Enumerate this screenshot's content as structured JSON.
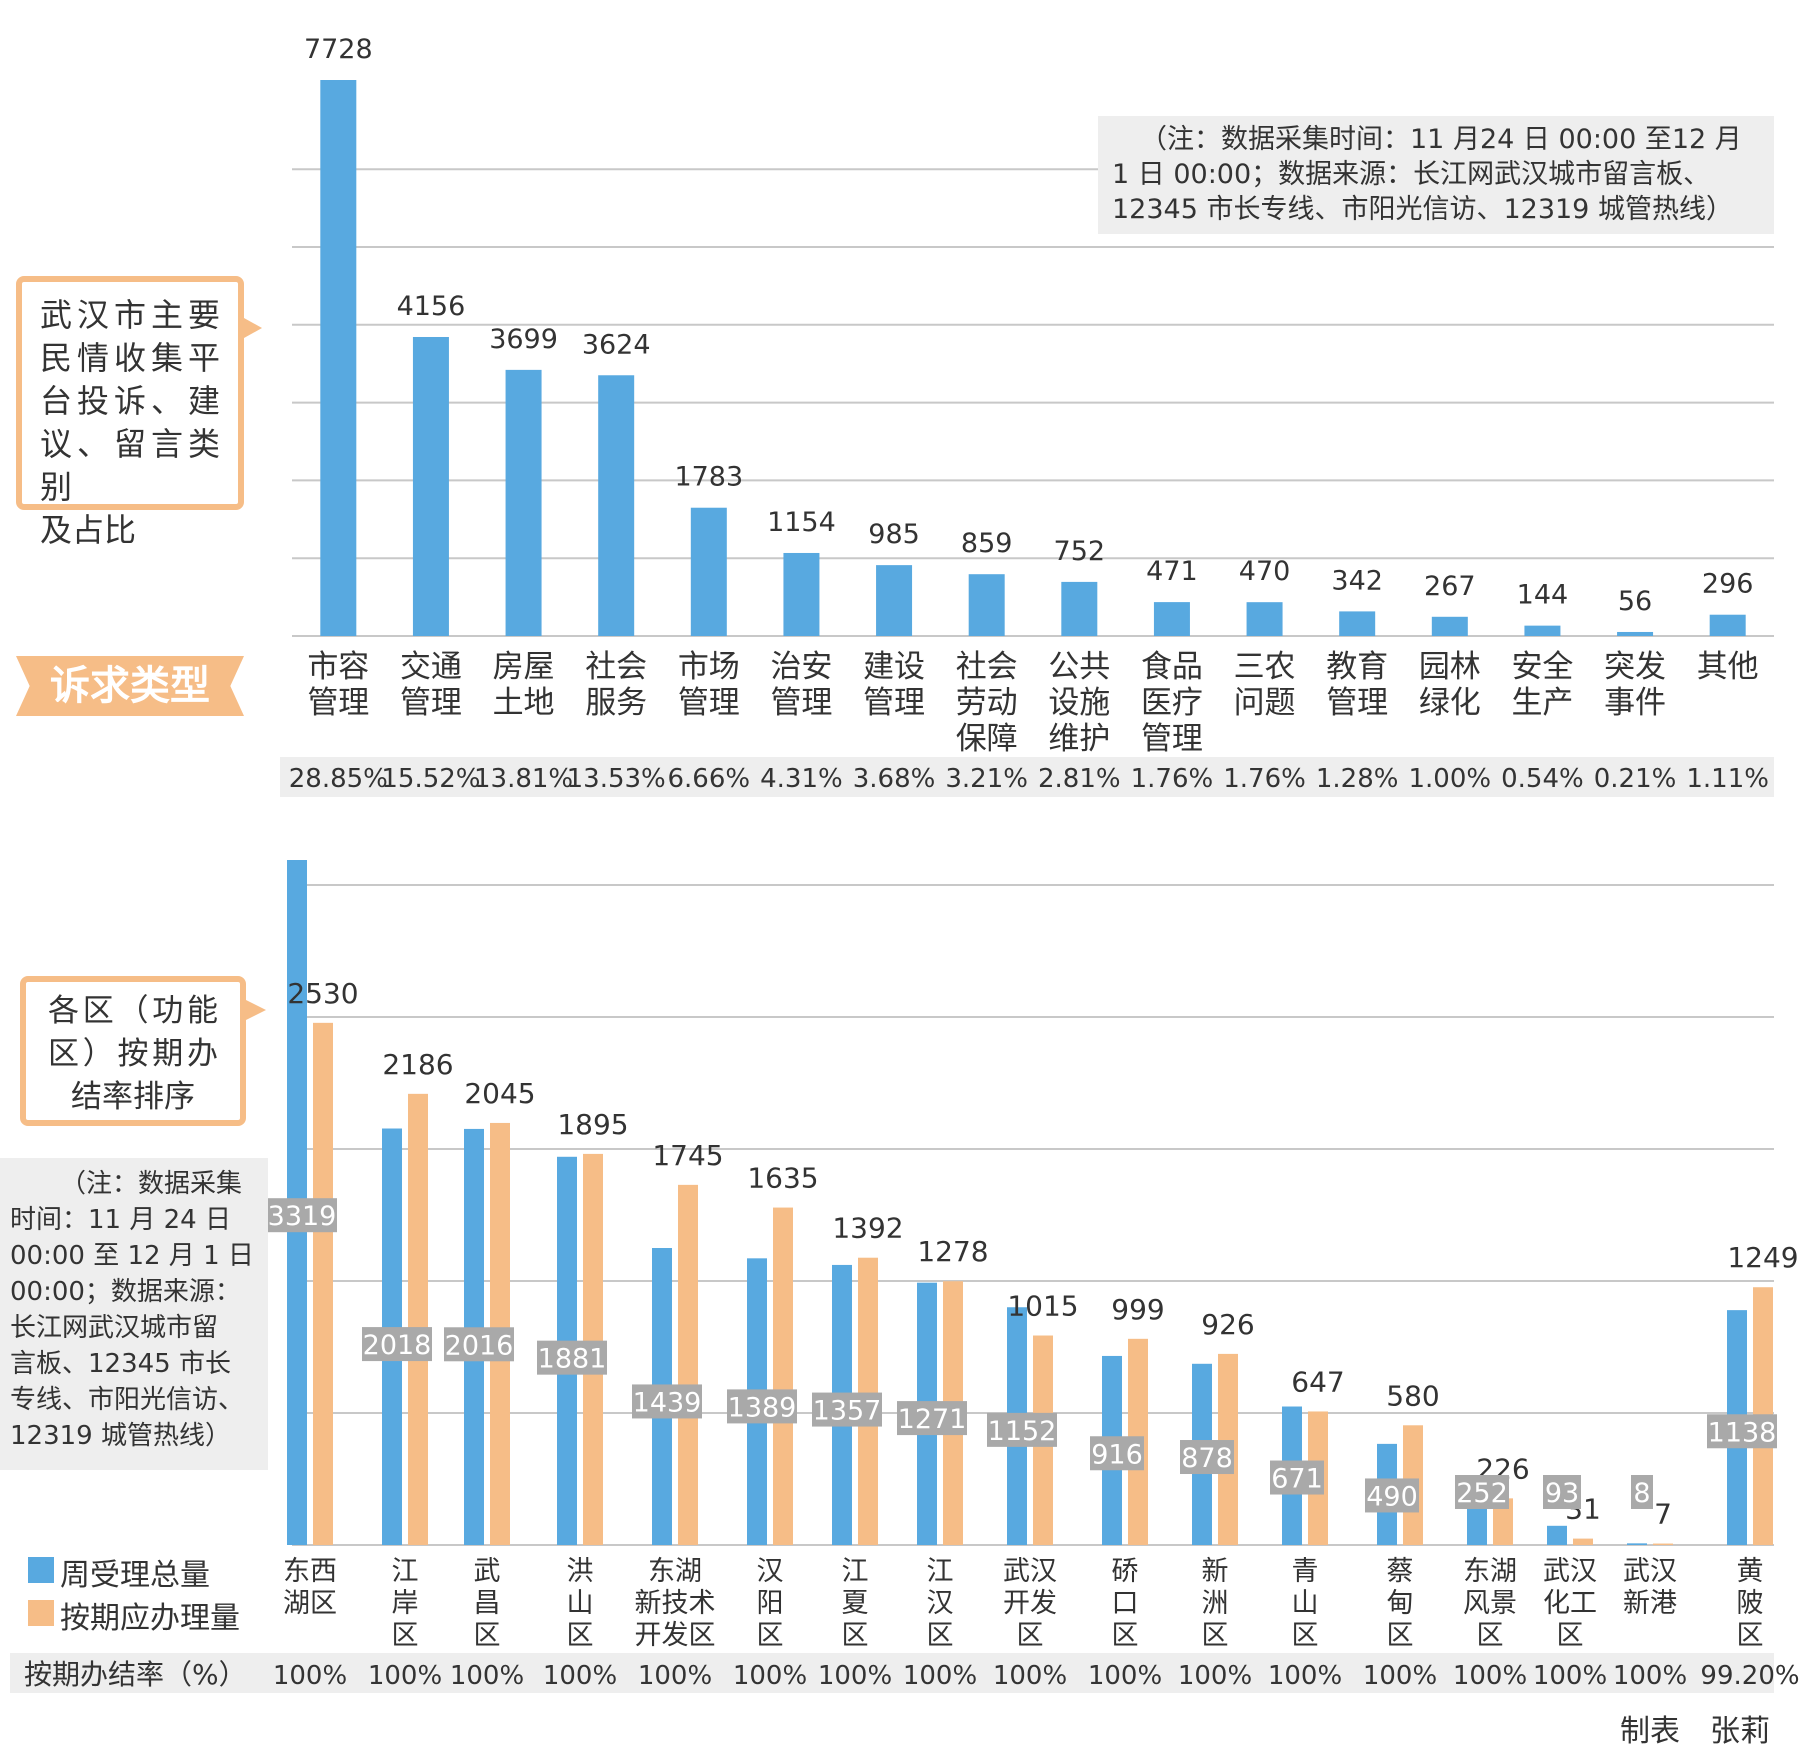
{
  "chart_data": [
    {
      "type": "bar",
      "title_lines": [
        "武汉市主要",
        "民情收集平",
        "台投诉、建",
        "议、留言类别",
        "及占比"
      ],
      "axis_banner": "诉求类型",
      "note_lines": [
        "（注：数据采集时间：11 月24 日 00:00 至12 月",
        "1 日 00:00；数据来源：长江网武汉城市留言板、",
        "12345 市长专线、市阳光信访、12319 城管热线）"
      ],
      "categories": [
        [
          "市容",
          "管理"
        ],
        [
          "交通",
          "管理"
        ],
        [
          "房屋",
          "土地"
        ],
        [
          "社会",
          "服务"
        ],
        [
          "市场",
          "管理"
        ],
        [
          "治安",
          "管理"
        ],
        [
          "建设",
          "管理"
        ],
        [
          "社会",
          "劳动",
          "保障"
        ],
        [
          "公共",
          "设施",
          "维护"
        ],
        [
          "食品",
          "医疗",
          "管理"
        ],
        [
          "三农",
          "问题"
        ],
        [
          "教育",
          "管理"
        ],
        [
          "园林",
          "绿化"
        ],
        [
          "安全",
          "生产"
        ],
        [
          "突发",
          "事件"
        ],
        [
          "其他"
        ]
      ],
      "values": [
        7728,
        4156,
        3699,
        3624,
        1783,
        1154,
        985,
        859,
        752,
        471,
        470,
        342,
        267,
        144,
        56,
        296
      ],
      "value_labels": [
        "7728",
        "4156",
        "3699",
        "3624",
        "1783",
        "1154",
        "985",
        "859",
        "752",
        "471",
        "470",
        "342",
        "267",
        "144",
        "56",
        "296"
      ],
      "percentages": [
        "28.85%",
        "15.52%",
        "13.81%",
        "13.53%",
        "6.66%",
        "4.31%",
        "3.68%",
        "3.21%",
        "2.81%",
        "1.76%",
        "1.76%",
        "1.28%",
        "1.00%",
        "0.54%",
        "0.21%",
        "1.11%"
      ],
      "ylim": [
        0,
        7728
      ],
      "colors": {
        "bar": "#58a9e0",
        "grid": "#c8c8c8",
        "pct_band": "#eeeeee",
        "banner": "#f6bd87"
      }
    },
    {
      "type": "bar",
      "title_lines": [
        "各区（功能",
        "区）按期办",
        "结率排序"
      ],
      "note_lines": [
        "（注：数据采集",
        "时间：11 月 24 日",
        "00:00 至 12 月 1 日",
        "00:00；数据来源：",
        "长江网武汉城市留",
        "言板、12345 市长",
        "专线、市阳光信访、",
        "12319 城管热线）"
      ],
      "categories": [
        [
          "东西",
          "湖区"
        ],
        [
          "江",
          "岸",
          "区"
        ],
        [
          "武",
          "昌",
          "区"
        ],
        [
          "洪",
          "山",
          "区"
        ],
        [
          "东湖",
          "新技术",
          "开发区"
        ],
        [
          "汉",
          "阳",
          "区"
        ],
        [
          "江",
          "夏",
          "区"
        ],
        [
          "江",
          "汉",
          "区"
        ],
        [
          "武汉",
          "开发",
          "区"
        ],
        [
          "硚",
          "口",
          "区"
        ],
        [
          "新",
          "洲",
          "区"
        ],
        [
          "青",
          "山",
          "区"
        ],
        [
          "蔡",
          "甸",
          "区"
        ],
        [
          "东湖",
          "风景",
          "区"
        ],
        [
          "武汉",
          "化工",
          "区"
        ],
        [
          "武汉",
          "新港"
        ],
        [
          "黄",
          "陂",
          "区"
        ]
      ],
      "series": [
        {
          "name": "周受理总量",
          "values": [
            3319,
            2018,
            2016,
            1881,
            1439,
            1389,
            1357,
            1271,
            1152,
            916,
            878,
            671,
            490,
            252,
            93,
            8,
            1138
          ],
          "labels": [
            "3319",
            "2018",
            "2016",
            "1881",
            "1439",
            "1389",
            "1357",
            "1271",
            "1152",
            "916",
            "878",
            "671",
            "490",
            "252",
            "93",
            "8",
            "1138"
          ]
        },
        {
          "name": "按期应办理量",
          "values": [
            2530,
            2186,
            2045,
            1895,
            1745,
            1635,
            1392,
            1278,
            1015,
            999,
            926,
            647,
            580,
            226,
            31,
            7,
            1249
          ],
          "labels": [
            "2530",
            "2186",
            "2045",
            "1895",
            "1745",
            "1635",
            "1392",
            "1278",
            "1015",
            "999",
            "926",
            "647",
            "580",
            "226",
            "31",
            "7",
            "1249"
          ]
        }
      ],
      "rate_header": "按期办结率（%）",
      "rates": [
        "100%",
        "100%",
        "100%",
        "100%",
        "100%",
        "100%",
        "100%",
        "100%",
        "100%",
        "100%",
        "100%",
        "100%",
        "100%",
        "100%",
        "100%",
        "100%",
        "99.20%"
      ],
      "colors": {
        "series1": "#58a9e0",
        "series2": "#f6bd87",
        "grid": "#c8c8c8",
        "label_box": "#a9a9a9",
        "rate_band": "#eeeeee"
      }
    }
  ],
  "credit": "制表　张莉"
}
